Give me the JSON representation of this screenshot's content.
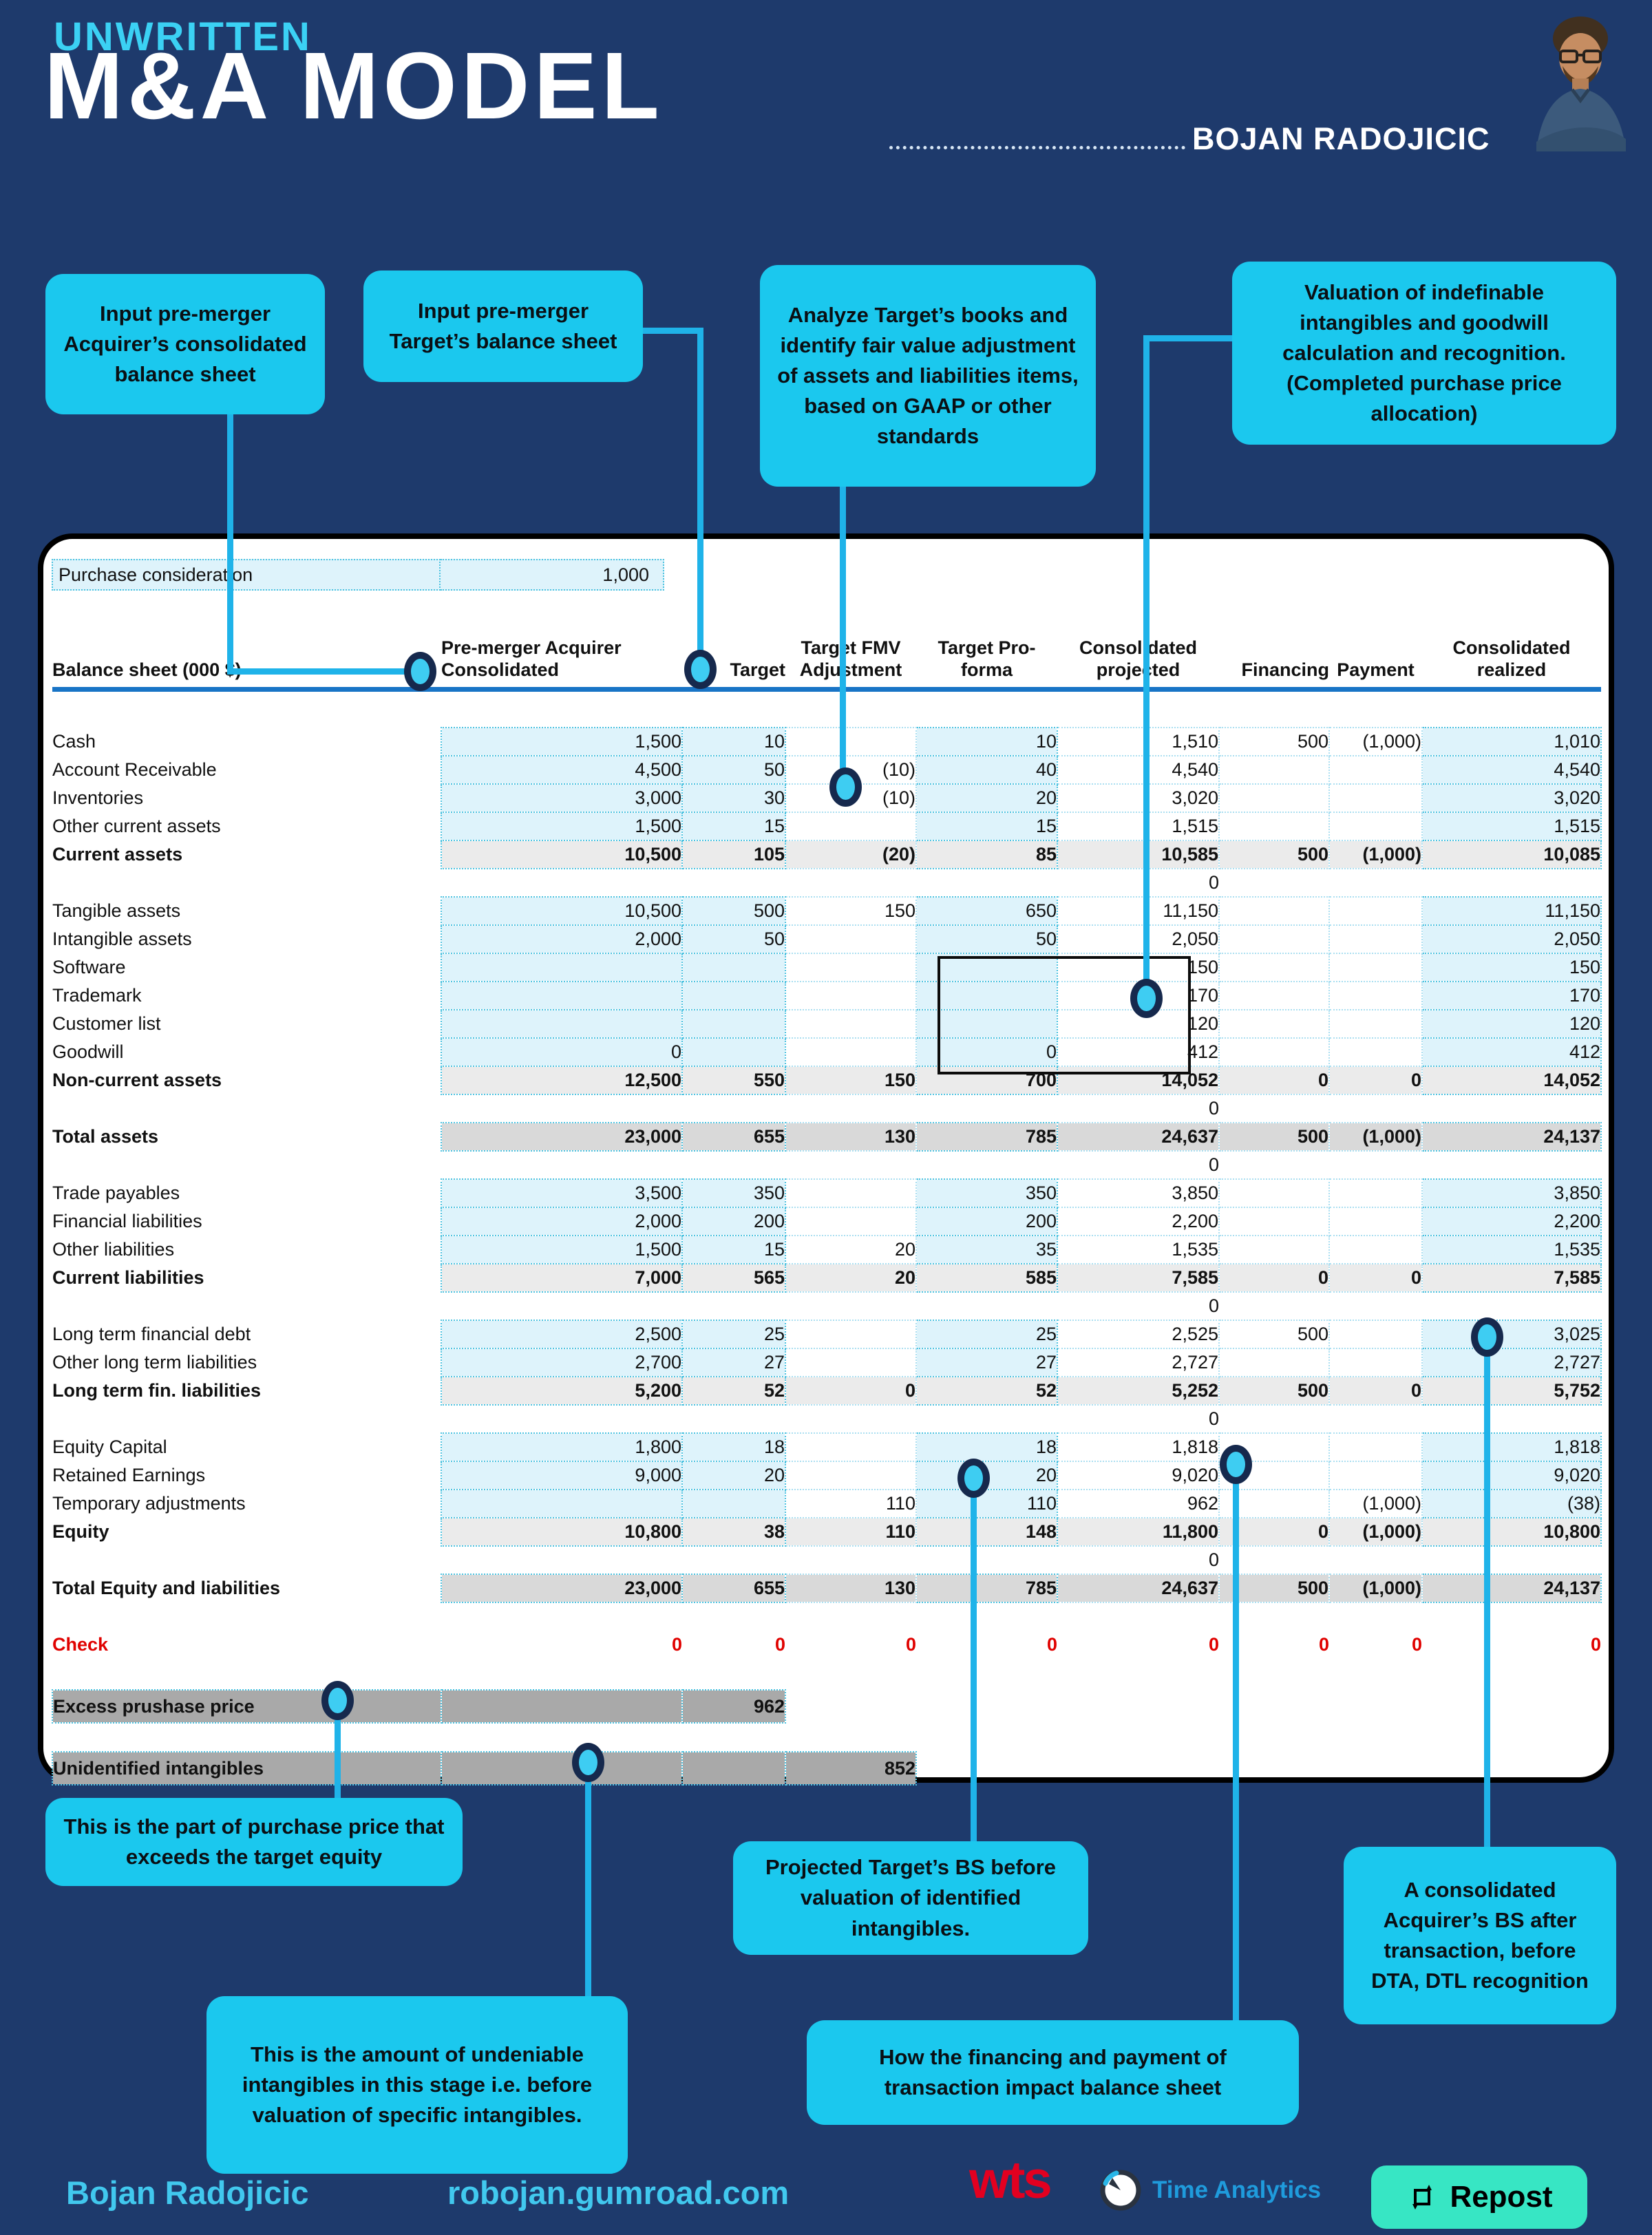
{
  "colors": {
    "background_navy": "#1e3a6c",
    "accent_cyan": "#1bc8ee",
    "connector_cyan": "#1fb3e9",
    "circle_ring_navy": "#16294d",
    "cell_highlight_cyan": "#def3fb",
    "subtotal_gray": "#ebebeb",
    "total_gray": "#d9d9d9",
    "band_gray": "#a9a9a9",
    "header_rule_blue": "#1874c6",
    "check_red": "#e00200",
    "blue_item_text": "#27279e",
    "wts_red": "#e30020",
    "repost_mint": "#37e6c4"
  },
  "icons": {
    "avatar": "portrait-photo-man-glasses",
    "time_analytics_logo": "clock-ring",
    "repost": "repost-arrows"
  },
  "header": {
    "kicker": "UNWRITTEN",
    "title": "M&A MODEL",
    "author": "BOJAN RADOJICIC"
  },
  "callouts_top": [
    {
      "text": "Input pre-merger Acquirer’s consolidated balance sheet"
    },
    {
      "text": "Input pre-merger Target’s balance sheet"
    },
    {
      "text": "Analyze Target’s books and identify fair value adjustment of assets and liabilities items, based on GAAP or other standards"
    },
    {
      "text": "Valuation of indefinable intangibles and goodwill calculation and recognition. (Completed purchase price allocation)"
    }
  ],
  "callouts_bottom": [
    {
      "text": "This is the part of purchase price that exceeds the target equity"
    },
    {
      "text": "This is the amount of undeniable intangibles in this stage i.e. before valuation of specific intangibles."
    },
    {
      "text": "Projected Target’s BS before valuation of identified intangibles."
    },
    {
      "text": "How the financing and payment of transaction impact balance sheet"
    },
    {
      "text": "A consolidated Acquirer’s BS after transaction, before DTA, DTL recognition"
    }
  ],
  "table": {
    "purchase": {
      "label": "Purchase consideration",
      "value": "1,000"
    },
    "sheet_header": "Balance sheet (000 $)",
    "columns": [
      {
        "l1": "Pre-merger Acquirer",
        "l2": "Consolidated"
      },
      {
        "l1": "",
        "l2": "Target"
      },
      {
        "l1": "Target FMV",
        "l2": "Adjustment"
      },
      {
        "l1": "Target Pro-",
        "l2": "forma"
      },
      {
        "l1": "Consolidated",
        "l2": "projected"
      },
      {
        "l1": "",
        "l2": "Financing"
      },
      {
        "l1": "",
        "l2": "Payment"
      },
      {
        "l1": "Consolidated",
        "l2": "realized"
      }
    ],
    "rows": [
      {
        "t": "gap",
        "h": 56
      },
      {
        "t": "d",
        "label": "Cash",
        "v": [
          "1,500",
          "10",
          "",
          "10",
          "1,510",
          "500",
          "(1,000)",
          "1,010"
        ]
      },
      {
        "t": "d",
        "label": "Account Receivable",
        "v": [
          "4,500",
          "50",
          "(10)",
          "40",
          "4,540",
          "",
          "",
          "4,540"
        ]
      },
      {
        "t": "d",
        "label": "Inventories",
        "v": [
          "3,000",
          "30",
          "(10)",
          "20",
          "3,020",
          "",
          "",
          "3,020"
        ]
      },
      {
        "t": "d",
        "label": "Other current assets",
        "v": [
          "1,500",
          "15",
          "",
          "15",
          "1,515",
          "",
          "",
          "1,515"
        ]
      },
      {
        "t": "sub",
        "label": "Current assets",
        "v": [
          "10,500",
          "105",
          "(20)",
          "85",
          "10,585",
          "500",
          "(1,000)",
          "10,085"
        ]
      },
      {
        "t": "sep",
        "zero": "0"
      },
      {
        "t": "d",
        "label": "Tangible assets",
        "v": [
          "10,500",
          "500",
          "150",
          "650",
          "11,150",
          "",
          "",
          "11,150"
        ]
      },
      {
        "t": "d",
        "label": "Intangible assets",
        "v": [
          "2,000",
          "50",
          "",
          "50",
          "2,050",
          "",
          "",
          "2,050"
        ]
      },
      {
        "t": "d",
        "label": "Software",
        "blue": true,
        "v": [
          "",
          "",
          "",
          "",
          "150",
          "",
          "",
          "150"
        ]
      },
      {
        "t": "d",
        "label": "Trademark",
        "blue": true,
        "v": [
          "",
          "",
          "",
          "",
          "170",
          "",
          "",
          "170"
        ]
      },
      {
        "t": "d",
        "label": "Customer list",
        "blue": true,
        "v": [
          "",
          "",
          "",
          "",
          "120",
          "",
          "",
          "120"
        ]
      },
      {
        "t": "d",
        "label": "Goodwill",
        "v": [
          "0",
          "",
          "",
          "0",
          "412",
          "",
          "",
          "412"
        ]
      },
      {
        "t": "sub",
        "label": "Non-current assets",
        "v": [
          "12,500",
          "550",
          "150",
          "700",
          "14,052",
          "0",
          "0",
          "14,052"
        ]
      },
      {
        "t": "sep",
        "zero": "0"
      },
      {
        "t": "total",
        "label": "Total assets",
        "v": [
          "23,000",
          "655",
          "130",
          "785",
          "24,637",
          "500",
          "(1,000)",
          "24,137"
        ]
      },
      {
        "t": "sep",
        "zero": "0"
      },
      {
        "t": "d",
        "label": "Trade payables",
        "v": [
          "3,500",
          "350",
          "",
          "350",
          "3,850",
          "",
          "",
          "3,850"
        ]
      },
      {
        "t": "d",
        "label": "Financial liabilities",
        "v": [
          "2,000",
          "200",
          "",
          "200",
          "2,200",
          "",
          "",
          "2,200"
        ]
      },
      {
        "t": "d",
        "label": "Other liabilities",
        "v": [
          "1,500",
          "15",
          "20",
          "35",
          "1,535",
          "",
          "",
          "1,535"
        ]
      },
      {
        "t": "sub",
        "label": "Current liabilities",
        "v": [
          "7,000",
          "565",
          "20",
          "585",
          "7,585",
          "0",
          "0",
          "7,585"
        ]
      },
      {
        "t": "sep",
        "zero": "0"
      },
      {
        "t": "d",
        "label": "Long term financial debt",
        "v": [
          "2,500",
          "25",
          "",
          "25",
          "2,525",
          "500",
          "",
          "3,025"
        ]
      },
      {
        "t": "d",
        "label": "Other long term liabilities",
        "v": [
          "2,700",
          "27",
          "",
          "27",
          "2,727",
          "",
          "",
          "2,727"
        ]
      },
      {
        "t": "sub",
        "label": "Long term fin. liabilities",
        "v": [
          "5,200",
          "52",
          "0",
          "52",
          "5,252",
          "500",
          "0",
          "5,752"
        ]
      },
      {
        "t": "sep",
        "zero": "0"
      },
      {
        "t": "d",
        "label": "Equity Capital",
        "v": [
          "1,800",
          "18",
          "",
          "18",
          "1,818",
          "",
          "",
          "1,818"
        ]
      },
      {
        "t": "d",
        "label": "Retained Earnings",
        "v": [
          "9,000",
          "20",
          "",
          "20",
          "9,020",
          "",
          "",
          "9,020"
        ]
      },
      {
        "t": "d",
        "label": "Temporary adjustments",
        "v": [
          "",
          "",
          "110",
          "110",
          "962",
          "",
          "(1,000)",
          "(38)"
        ]
      },
      {
        "t": "sub",
        "label": "Equity",
        "v": [
          "10,800",
          "38",
          "110",
          "148",
          "11,800",
          "0",
          "(1,000)",
          "10,800"
        ]
      },
      {
        "t": "sep",
        "zero": "0"
      },
      {
        "t": "total",
        "label": "Total Equity and liabilities",
        "v": [
          "23,000",
          "655",
          "130",
          "785",
          "24,637",
          "500",
          "(1,000)",
          "24,137"
        ]
      },
      {
        "t": "gap",
        "h": 28
      },
      {
        "t": "check",
        "label": "Check",
        "v": [
          "0",
          "0",
          "0",
          "0",
          "0",
          "0",
          "0",
          "0"
        ]
      },
      {
        "t": "gap",
        "h": 45
      },
      {
        "t": "band",
        "label": "Excess prushase price",
        "value": "962",
        "through": 2
      },
      {
        "t": "gap",
        "h": 42
      },
      {
        "t": "band",
        "label": "Unidentified intangibles",
        "value": "852",
        "through": 3
      }
    ]
  },
  "footer": {
    "name": "Bojan Radojicic",
    "site": "robojan.gumroad.com",
    "wts": "wts",
    "time_analytics": "Time Analytics",
    "repost": "Repost"
  }
}
